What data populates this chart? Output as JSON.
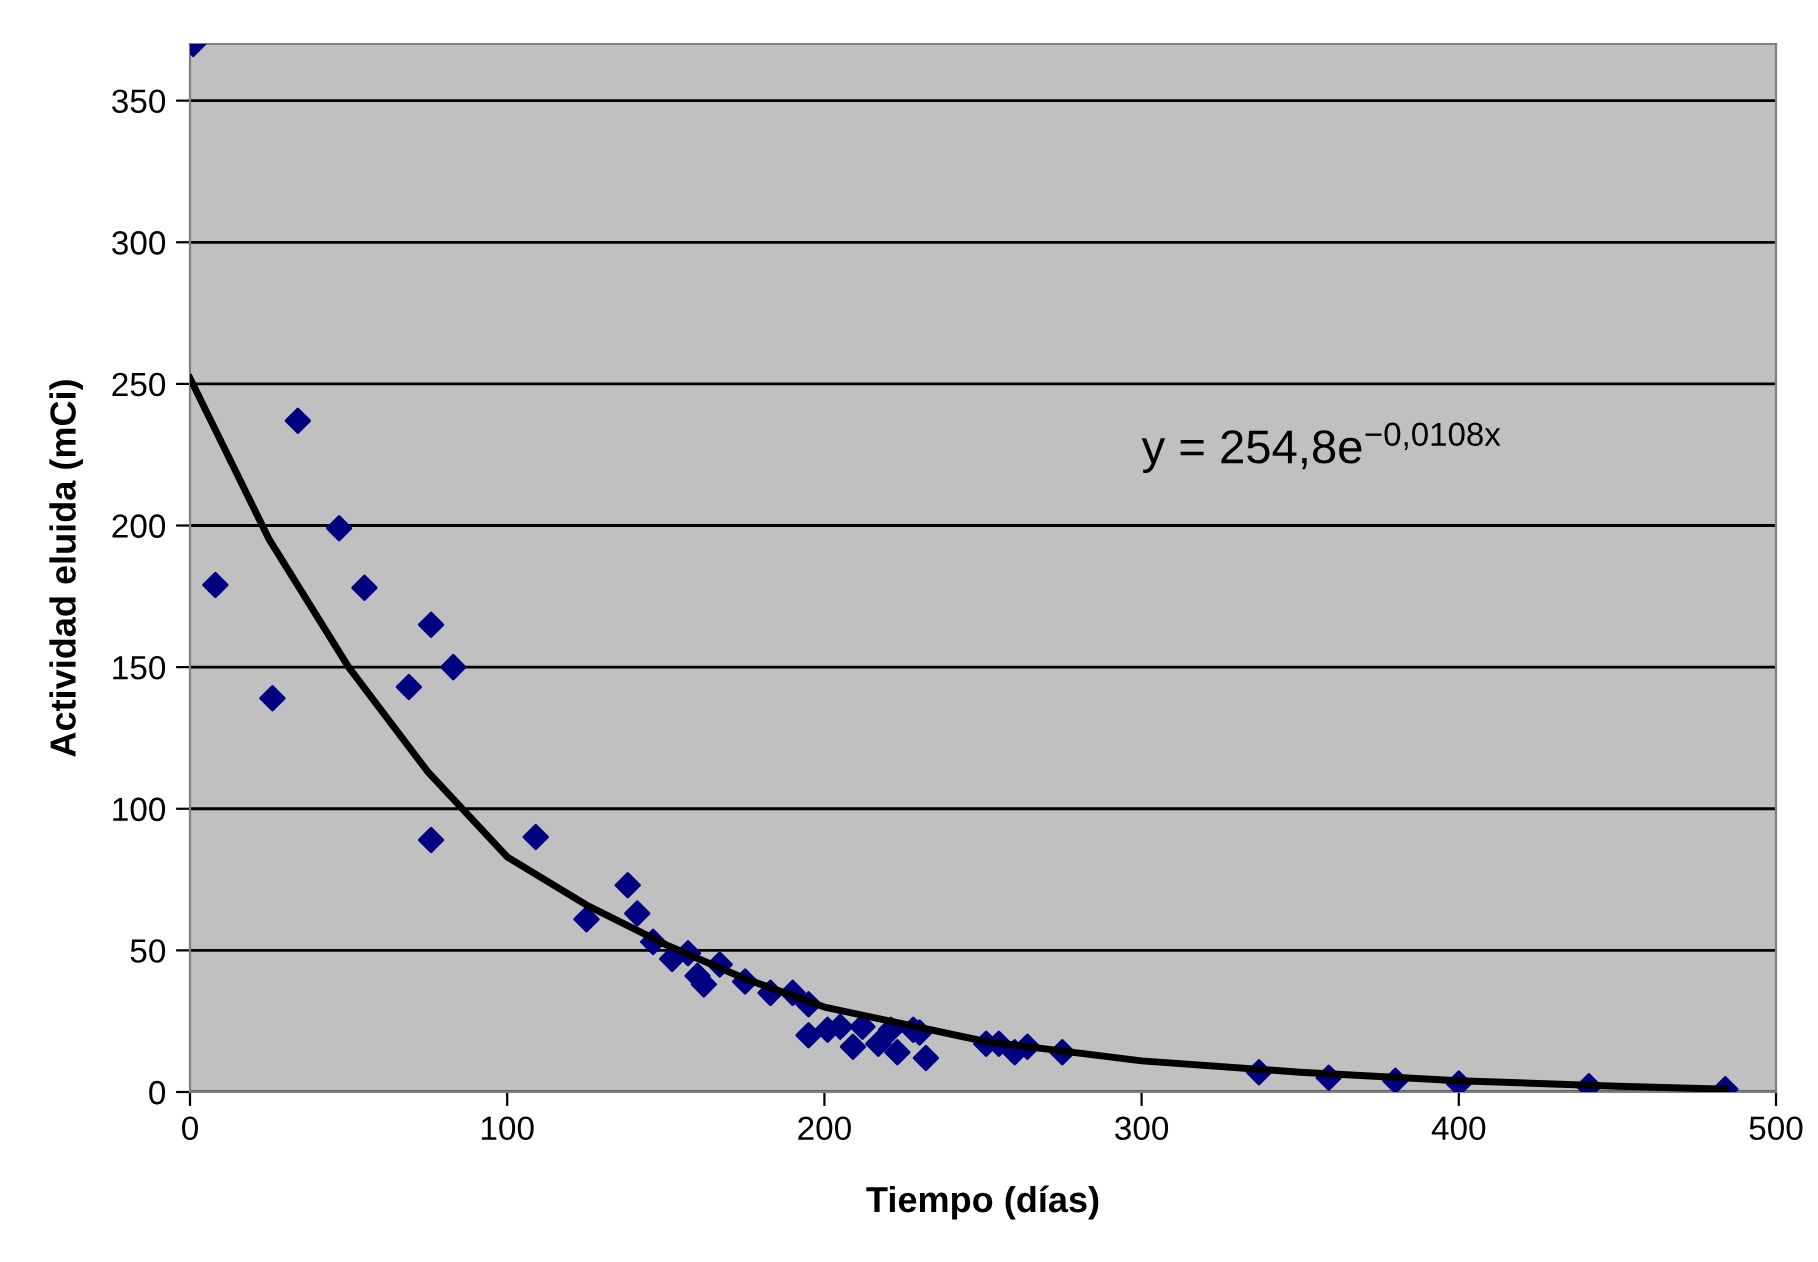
{
  "chart_data": {
    "type": "scatter",
    "xlabel": "Tiempo (días)",
    "ylabel": "Actividad eluida (mCi)",
    "annotations": [
      "y = 254,8e$^{−0,0108x}$"
    ],
    "xlim": [
      0,
      500
    ],
    "xticks": [
      0,
      100,
      200,
      300,
      400,
      500
    ],
    "ylim": [
      0,
      370
    ],
    "yticks": [
      0,
      50,
      100,
      150,
      200,
      250,
      300,
      350
    ],
    "grid": "y",
    "legend": false,
    "series": [
      {
        "marker": "diamond",
        "color": "#000080",
        "x": [
          1,
          8,
          26,
          34,
          47,
          55,
          69,
          76,
          76,
          83,
          109,
          125,
          138,
          141,
          146,
          152,
          157,
          160,
          162,
          167,
          175,
          183,
          190,
          195,
          195,
          201,
          205,
          209,
          212,
          217,
          221,
          223,
          228,
          230,
          232,
          251,
          255,
          260,
          264,
          275,
          337,
          359,
          380,
          400,
          441,
          484
        ],
        "values": [
          370,
          179,
          139,
          237,
          199,
          178,
          143,
          165,
          89,
          150,
          90,
          61,
          73,
          63,
          53,
          47,
          49,
          41,
          38,
          45,
          39,
          35,
          35,
          31,
          20,
          22,
          23,
          16,
          23,
          17,
          22,
          14,
          22,
          21,
          12,
          17,
          17,
          14,
          16,
          14,
          7,
          5,
          4,
          3,
          2,
          1
        ]
      },
      {
        "type": "line",
        "marker": "none",
        "line_style": "solid",
        "color": "#000000",
        "x": [
          0,
          25,
          50,
          75,
          100,
          125,
          150,
          175,
          200,
          250,
          300,
          350,
          400,
          450,
          484
        ],
        "values": [
          252,
          195,
          150,
          113,
          83,
          66,
          52,
          40,
          30,
          18,
          11,
          7,
          4,
          2,
          1
        ]
      }
    ]
  }
}
